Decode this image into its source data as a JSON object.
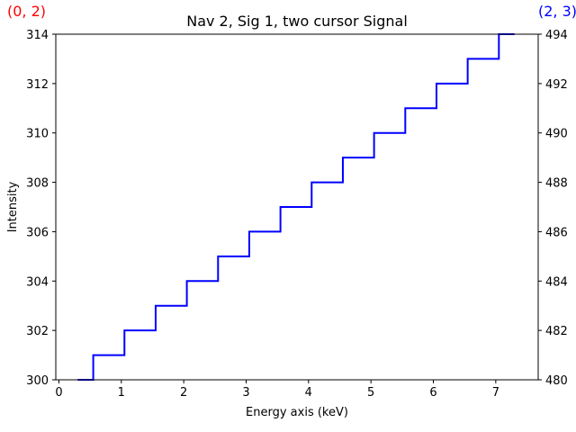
{
  "chart_data": {
    "type": "line",
    "title": "Nav 2, Sig 1, two cursor Signal",
    "xlabel": "Energy axis (keV)",
    "ylabel": "Intensity",
    "xlim": [
      -0.05,
      7.68
    ],
    "ylim": [
      300,
      314
    ],
    "y2lim": [
      480,
      494
    ],
    "xticks": [
      0,
      1,
      2,
      3,
      4,
      5,
      6,
      7
    ],
    "yticks": [
      300,
      302,
      304,
      306,
      308,
      310,
      312,
      314
    ],
    "y2ticks": [
      480,
      482,
      484,
      486,
      488,
      490,
      492,
      494
    ],
    "grid": false,
    "step": "post",
    "series": [
      {
        "color": "#0000ff",
        "x": [
          0.3,
          0.55,
          1.05,
          1.55,
          2.05,
          2.55,
          3.05,
          3.55,
          4.05,
          4.55,
          5.05,
          5.55,
          6.05,
          6.55,
          7.05,
          7.3
        ],
        "y": [
          300,
          301,
          302,
          303,
          304,
          305,
          306,
          307,
          308,
          309,
          310,
          311,
          312,
          313,
          314,
          314
        ]
      }
    ]
  },
  "corner_labels": {
    "left": {
      "text": "(0, 2)",
      "color": "#ff0000"
    },
    "right": {
      "text": "(2, 3)",
      "color": "#0000ff"
    }
  }
}
